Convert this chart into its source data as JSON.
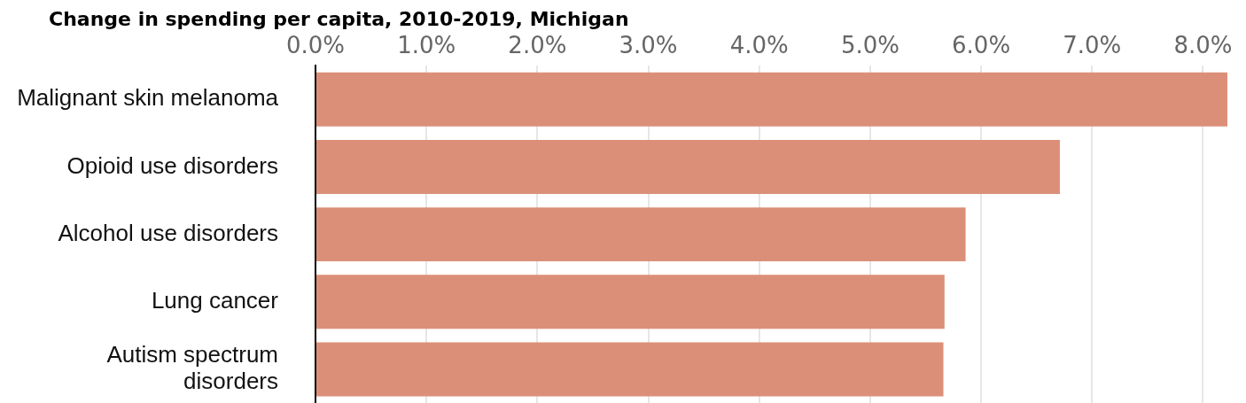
{
  "chart_data": {
    "type": "bar",
    "orientation": "horizontal",
    "title": "Change in spending per capita, 2010-2019, Michigan",
    "categories": [
      "Malignant skin melanoma",
      "Opioid use disorders",
      "Alcohol use disorders",
      "Lung cancer",
      "Autism spectrum disorders"
    ],
    "values": [
      8.22,
      6.71,
      5.86,
      5.67,
      5.66
    ],
    "color": "#dc8f78",
    "xlim": [
      0,
      8.22
    ],
    "xticks": [
      {
        "value": 0,
        "label": "0.0%"
      },
      {
        "value": 1,
        "label": "1.0%"
      },
      {
        "value": 2,
        "label": "2.0%"
      },
      {
        "value": 3,
        "label": "3.0%"
      },
      {
        "value": 4,
        "label": "4.0%"
      },
      {
        "value": 5,
        "label": "5.0%"
      },
      {
        "value": 6,
        "label": "6.0%"
      },
      {
        "value": 7,
        "label": "7.0%"
      },
      {
        "value": 8,
        "label": "8.0%"
      }
    ],
    "grid": "x"
  }
}
